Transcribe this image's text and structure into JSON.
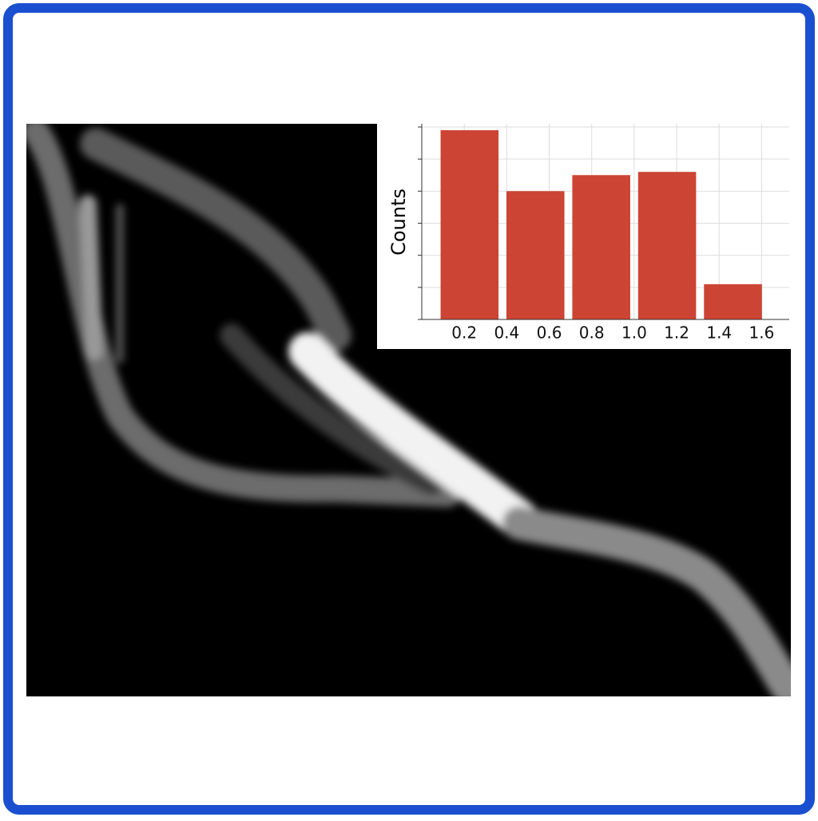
{
  "chart_data": {
    "type": "histogram",
    "y_label": "Counts",
    "bins": [
      0.07,
      0.38,
      0.69,
      1.0,
      1.31,
      1.62
    ],
    "values": [
      59,
      40,
      45,
      46,
      11
    ],
    "color": "#cc4433",
    "xlim": [
      0,
      1.73
    ],
    "xticks": [
      0.2,
      0.4,
      0.6,
      0.8,
      {
        "value": 1,
        "label": "1.0"
      },
      1.2,
      1.4,
      1.6
    ],
    "ylim": [
      0,
      61
    ],
    "yticks": [
      0,
      10,
      20,
      30,
      40,
      50,
      60
    ],
    "grid": true
  }
}
